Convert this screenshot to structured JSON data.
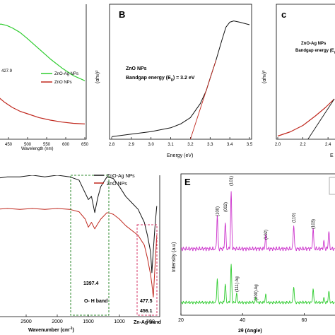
{
  "colors": {
    "green": "#2ecc2e",
    "red": "#c0281e",
    "black": "#111111",
    "magenta": "#cc33cc",
    "box_green": "#2d8a2d",
    "box_pink": "#d63a6a"
  },
  "panels": {
    "a": {
      "legend": [
        "ZnO-Ag NPs",
        "ZnO NPs"
      ],
      "annotation": "427.9",
      "xlabel": "Wavelength (nm)",
      "ticks": [
        "450",
        "500",
        "550",
        "600",
        "650"
      ]
    },
    "b": {
      "letter": "B",
      "title1": "ZnO NPs",
      "title2": "Bandgap energy (E",
      "title2_sub": "g",
      "title2_end": ") = 3.2 eV",
      "ylabel": "(αhν)²",
      "xlabel": "Energy (eV)",
      "ticks": [
        "2.8",
        "2.9",
        "3.0",
        "3.1",
        "3.2",
        "3.3",
        "3.4",
        "3.5"
      ]
    },
    "c": {
      "letter": "c",
      "title1": "ZnO-Ag NPs",
      "title2": "Bandgap energy (E",
      "title2_sub": "g",
      "title2_end": ")",
      "ylabel": "(αhν)²",
      "xlabel": "E",
      "ticks": [
        "2.0",
        "2.2",
        "2.4"
      ]
    },
    "d": {
      "legend": [
        "ZnO-Ag NPs",
        "ZnO NPs"
      ],
      "xlabel": "Wavenumber (cm",
      "xlabel_sup": "-1",
      "xlabel_end": ")",
      "ticks": [
        "2500",
        "2000",
        "1500",
        "1000",
        "500"
      ],
      "annotations": {
        "p1": "1397.4",
        "p2": "477.5",
        "p3": "456.1",
        "band1": "O- H band",
        "band2": "Zn-Ag band"
      }
    },
    "e": {
      "letter": "E",
      "ylabel": "Intensity (a.u)",
      "xlabel": "2θ (Angle)",
      "ticks": [
        "20",
        "40",
        "60"
      ],
      "peaks": [
        "(100)",
        "(002)",
        "(101)",
        "(102)",
        "(110)",
        "(103)"
      ],
      "ag_peaks": [
        "(111)  Ag",
        "(200)  Ag"
      ]
    }
  },
  "chart_data": [
    {
      "type": "line",
      "panel": "A",
      "xlabel": "Wavelength (nm)",
      "xlim": [
        400,
        650
      ],
      "series": [
        {
          "name": "ZnO-Ag NPs",
          "x": [
            400,
            415,
            430,
            445,
            460,
            480,
            500,
            530,
            560,
            590,
            620,
            650
          ],
          "y": [
            0.86,
            0.895,
            0.905,
            0.895,
            0.875,
            0.84,
            0.79,
            0.71,
            0.63,
            0.56,
            0.5,
            0.46
          ]
        },
        {
          "name": "ZnO NPs",
          "x": [
            400,
            420,
            440,
            460,
            480,
            500,
            530,
            560,
            590,
            620,
            650
          ],
          "y": [
            0.4,
            0.34,
            0.29,
            0.25,
            0.22,
            0.2,
            0.17,
            0.15,
            0.135,
            0.125,
            0.12
          ]
        }
      ]
    },
    {
      "type": "line",
      "panel": "B",
      "xlabel": "Energy (eV)",
      "ylabel": "(αhν)²",
      "xlim": [
        2.8,
        3.5
      ],
      "series": [
        {
          "x": [
            2.8,
            2.9,
            3.0,
            3.1,
            3.15,
            3.2,
            3.25,
            3.28,
            3.3,
            3.33,
            3.36,
            3.38,
            3.4,
            3.42,
            3.45,
            3.5
          ],
          "y": [
            0.02,
            0.04,
            0.06,
            0.09,
            0.12,
            0.17,
            0.28,
            0.38,
            0.48,
            0.62,
            0.78,
            0.88,
            0.92,
            0.93,
            0.92,
            0.9
          ]
        },
        {
          "x": [
            3.2,
            3.33
          ],
          "y": [
            0.0,
            0.62
          ]
        }
      ]
    },
    {
      "type": "line",
      "panel": "C",
      "ylabel": "(αhν)²",
      "xlim": [
        2.0,
        2.45
      ],
      "series": [
        {
          "x": [
            2.0,
            2.1,
            2.2,
            2.3,
            2.38,
            2.45
          ],
          "y": [
            0.03,
            0.07,
            0.13,
            0.22,
            0.3,
            0.38
          ]
        },
        {
          "x": [
            2.24,
            2.45
          ],
          "y": [
            0.0,
            0.38
          ]
        }
      ]
    },
    {
      "type": "line",
      "panel": "D",
      "xlim": [
        3000,
        400
      ],
      "series": [
        {
          "name": "ZnO-Ag NPs",
          "x": [
            3000,
            2800,
            2600,
            2400,
            2200,
            2000,
            1800,
            1650,
            1550,
            1500,
            1450,
            1397,
            1350,
            1300,
            1200,
            1100,
            1000,
            900,
            800,
            700,
            600,
            550,
            500,
            478,
            460,
            430,
            400
          ],
          "y": [
            0.85,
            0.86,
            0.86,
            0.87,
            0.86,
            0.87,
            0.86,
            0.84,
            0.76,
            0.72,
            0.74,
            0.64,
            0.73,
            0.8,
            0.86,
            0.85,
            0.8,
            0.74,
            0.7,
            0.66,
            0.58,
            0.5,
            0.4,
            0.27,
            0.38,
            0.55,
            0.68
          ]
        },
        {
          "name": "ZnO NPs",
          "x": [
            3000,
            2800,
            2600,
            2400,
            2200,
            2000,
            1800,
            1650,
            1550,
            1500,
            1450,
            1397,
            1350,
            1300,
            1200,
            1100,
            1000,
            900,
            800,
            700,
            600,
            550,
            500,
            478,
            456,
            430,
            400
          ],
          "y": [
            0.66,
            0.665,
            0.66,
            0.665,
            0.66,
            0.665,
            0.66,
            0.645,
            0.6,
            0.55,
            0.58,
            0.54,
            0.57,
            0.6,
            0.64,
            0.63,
            0.6,
            0.56,
            0.53,
            0.5,
            0.44,
            0.36,
            0.26,
            0.2,
            0.12,
            0.3,
            0.5
          ]
        }
      ]
    },
    {
      "type": "line",
      "panel": "E",
      "xlabel": "2θ (Angle)",
      "ylabel": "Intensity (a.u)",
      "xlim": [
        20,
        70
      ],
      "series": [
        {
          "peaks_x": [
            31.8,
            34.4,
            36.3,
            47.5,
            56.6,
            62.9,
            66.4,
            68.0
          ],
          "peaks_h": [
            0.55,
            0.45,
            0.95,
            0.22,
            0.4,
            0.32,
            0.12,
            0.3
          ]
        },
        {
          "peaks_x": [
            31.8,
            34.4,
            36.3,
            38.1,
            44.3,
            47.5,
            56.6,
            62.9,
            66.4,
            68.0
          ],
          "peaks_h": [
            0.55,
            0.45,
            0.9,
            0.2,
            0.1,
            0.18,
            0.38,
            0.3,
            0.1,
            0.28
          ]
        }
      ]
    }
  ]
}
